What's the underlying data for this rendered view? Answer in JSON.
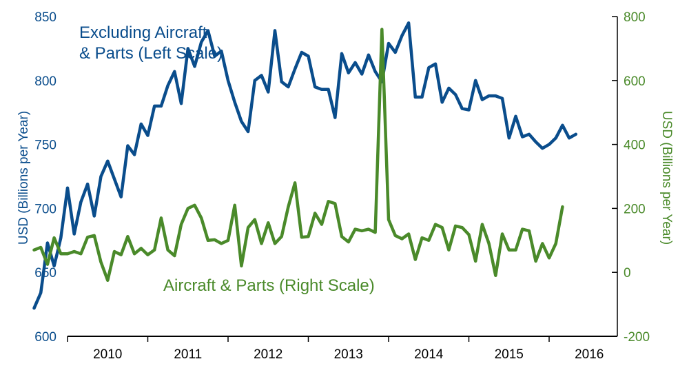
{
  "chart_data": {
    "type": "line",
    "title": "",
    "x_categories": [
      "2010",
      "2011",
      "2012",
      "2013",
      "2014",
      "2015",
      "2016"
    ],
    "left_axis": {
      "label": "USD (Billions per Year)",
      "ylim": [
        600,
        850
      ],
      "ticks": [
        "600",
        "650",
        "700",
        "750",
        "800",
        "850"
      ],
      "color": "#0a4d8c"
    },
    "right_axis": {
      "label": "USD (Billions per Year)",
      "ylim": [
        -200,
        800
      ],
      "ticks": [
        "-200",
        "0",
        "200",
        "400",
        "600",
        "800"
      ],
      "color": "#4a8a2a"
    },
    "annotations": {
      "blue_line1": "Excluding Aircraft",
      "blue_line2": "& Parts (Left Scale)",
      "green": "Aircraft & Parts (Right Scale)"
    },
    "series": [
      {
        "name": "Excluding Aircraft & Parts (Left Scale)",
        "axis": "left",
        "color": "#0a4d8c",
        "start": "2009-08",
        "values": [
          622,
          634,
          673,
          655,
          677,
          716,
          680,
          705,
          719,
          694,
          725,
          737,
          723,
          709,
          749,
          742,
          766,
          757,
          780,
          780,
          796,
          807,
          782,
          825,
          811,
          830,
          839,
          819,
          823,
          800,
          783,
          768,
          760,
          800,
          804,
          791,
          839,
          799,
          795,
          809,
          822,
          819,
          795,
          793,
          793,
          771,
          821,
          806,
          814,
          805,
          820,
          807,
          799,
          829,
          822,
          835,
          845,
          787,
          787,
          810,
          813,
          783,
          794,
          789,
          778,
          777,
          800,
          785,
          788,
          788,
          786,
          755,
          772,
          756,
          758,
          752,
          747,
          750,
          755,
          765,
          755,
          758
        ]
      },
      {
        "name": "Aircraft & Parts (Right Scale)",
        "axis": "right",
        "color": "#4a8a2a",
        "start": "2009-08",
        "values": [
          70,
          78,
          25,
          108,
          58,
          58,
          65,
          58,
          110,
          115,
          32,
          -25,
          65,
          55,
          112,
          58,
          75,
          55,
          70,
          170,
          70,
          52,
          150,
          200,
          210,
          170,
          100,
          102,
          90,
          100,
          210,
          20,
          140,
          165,
          90,
          155,
          90,
          112,
          205,
          280,
          110,
          112,
          185,
          150,
          222,
          215,
          112,
          95,
          135,
          130,
          135,
          125,
          760,
          165,
          115,
          105,
          120,
          40,
          108,
          100,
          150,
          140,
          70,
          145,
          140,
          118,
          35,
          150,
          90,
          -10,
          120,
          70,
          70,
          135,
          130,
          35,
          90,
          45,
          90,
          205
        ]
      }
    ]
  }
}
